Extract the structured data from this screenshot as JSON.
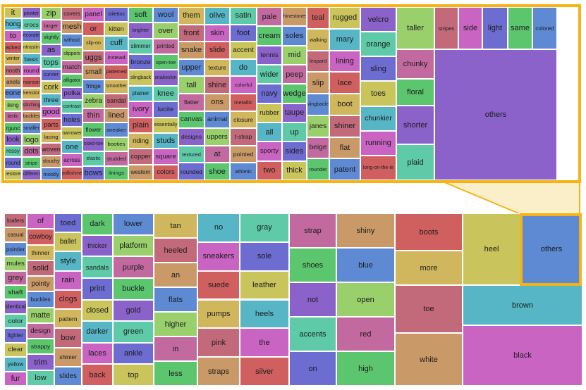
{
  "palette": {
    "blue": "#5e8ad4",
    "teal": "#56b6c6",
    "green": "#5cc66f",
    "lightgreen": "#99d06c",
    "olive": "#c9c45c",
    "tan": "#c99a68",
    "rose": "#c2697a",
    "magenta": "#c964c3",
    "violet": "#8b62c9",
    "indigo": "#6c6cd1",
    "sea": "#5fcaa8",
    "red": "#d06060",
    "pink": "#c26aa0",
    "gold": "#d0b65c"
  },
  "highlight_color": "#f5b316",
  "detail_panel": {
    "columns": [
      [
        "it",
        "hong",
        "to",
        "acked",
        "winter",
        "nooth",
        "anels",
        "eone",
        "iking",
        "lastic",
        "rgunc",
        "look",
        "ressy",
        "round",
        "restore"
      ],
      [
        "pewter",
        "crocs",
        "ecorate",
        "ntrastin",
        "basic",
        "round",
        "maroon",
        "kenstor",
        "stitching",
        "buckles",
        "smaller",
        "logo",
        "dots",
        "stripe",
        "differen"
      ],
      [
        "zip",
        "larger",
        "slightly",
        "as",
        "tops",
        "curvier",
        "cork",
        "three",
        "good",
        "parts",
        "lacing",
        "woven",
        "slouchy",
        "mostly"
      ],
      [
        "covers",
        "mesh",
        "without",
        "slippers",
        "match",
        "alligator",
        "polka",
        "contrast",
        "holes",
        "narrower",
        "one",
        "across",
        "pollishme"
      ],
      [
        "panel",
        "or",
        "slip-on",
        "uggs",
        "small",
        "fringe",
        "zebra",
        "thin",
        "flower",
        "osed-toe",
        "elastic",
        "bows"
      ],
      [
        "stilettos",
        "kitten",
        "cuff",
        "instead",
        "patterned",
        "smoother",
        "sandal",
        "lined",
        "sneaker",
        "booties",
        "studded",
        "linings"
      ],
      [
        "soft",
        "brighter",
        "slimmer",
        "bronze",
        "slingback",
        "plainer",
        "ivory",
        "plain",
        "riding",
        "copper",
        "western"
      ],
      [
        "wool",
        "over",
        "printed",
        "open-toe",
        "snakeskin",
        "knee",
        "lucite",
        "essentially",
        "studs",
        "square",
        "colors"
      ],
      [
        "them",
        "front",
        "snake",
        "upper",
        "tall",
        "flatter",
        "canvas",
        "designs",
        "textured",
        "rounded"
      ],
      [
        "olive",
        "skin",
        "slide",
        "texture",
        "shine",
        "ons",
        "animal",
        "uppers",
        "at",
        "shoe"
      ],
      [
        "satin",
        "foot",
        "accent",
        "do",
        "colorful",
        "metallic",
        "closure",
        "t-strap",
        "pointed",
        "athletic"
      ],
      [
        "pale",
        "cream",
        "tennis",
        "wider",
        "navy",
        "rubber",
        "all",
        "sporty",
        "two"
      ],
      [
        "rhinestones",
        "soles",
        "mid",
        "peep",
        "wedge",
        "taupe",
        "up",
        "sides",
        "thick"
      ],
      [
        "teal",
        "walking",
        "leopard",
        "slip",
        "slingbacks",
        "janes",
        "beige",
        "rounder"
      ],
      [
        "rugged",
        "mary",
        "lining",
        "lace",
        "boot",
        "shiner",
        "flat",
        "patent"
      ],
      [
        "velcro",
        "orange",
        "sling",
        "toes",
        "chunkier",
        "running",
        "long-on-the-le"
      ],
      [
        "taller",
        "chunky",
        "floral",
        "shorter",
        "plaid"
      ],
      [
        "stripes",
        "others"
      ],
      [
        "side"
      ],
      [
        "light"
      ],
      [
        "same"
      ],
      [
        "colored"
      ]
    ]
  },
  "overview_panel": {
    "columns": [
      [
        "loafers",
        "casual",
        "pointier",
        "mules",
        "grey",
        "shaft",
        "identical",
        "color",
        "lighter",
        "clear",
        "yellow",
        "fur"
      ],
      [
        "of",
        "cowboy",
        "thinner",
        "solid",
        "pointy",
        "buckles",
        "matte",
        "design",
        "strappy",
        "trim",
        "low"
      ],
      [
        "toed",
        "ballet",
        "style",
        "rain",
        "clogs",
        "pattern",
        "bow",
        "shinier",
        "slides"
      ],
      [
        "dark",
        "thicker",
        "sandals",
        "print",
        "closed",
        "darker",
        "laces",
        "back"
      ],
      [
        "lower",
        "platform",
        "purple",
        "buckle",
        "gold",
        "green",
        "ankle",
        "top"
      ],
      [
        "tan",
        "heeled",
        "an",
        "flats",
        "higher",
        "in",
        "less"
      ],
      [
        "no",
        "sneakers",
        "suede",
        "pumps",
        "pink",
        "straps"
      ],
      [
        "gray",
        "sole",
        "leather",
        "heels",
        "the",
        "silver"
      ],
      [
        "strap",
        "shoes",
        "not",
        "accents",
        "on"
      ],
      [
        "shiny",
        "blue",
        "open",
        "red",
        "high"
      ],
      [
        "boots",
        "more",
        "toe",
        "white"
      ],
      [
        "heel",
        "brown",
        "black"
      ],
      [
        "others"
      ]
    ]
  }
}
